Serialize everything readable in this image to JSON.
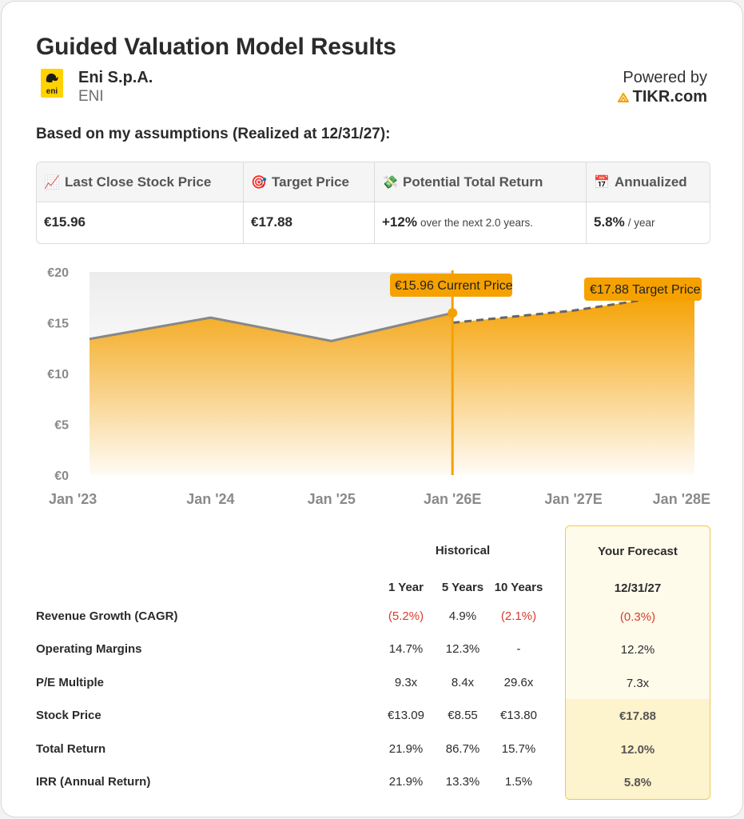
{
  "header": {
    "title": "Guided Valuation Model Results",
    "company": "Eni S.p.A.",
    "ticker": "ENI",
    "powered_by": "Powered by",
    "brand": "TIKR.com",
    "logo_text": "eni"
  },
  "assumptions_label": "Based on my assumptions (Realized at 12/31/27):",
  "summary": {
    "columns": [
      {
        "icon": "chart-increasing-icon",
        "glyph": "📈",
        "label": "Last Close Stock Price",
        "value": "€15.96",
        "suffix": ""
      },
      {
        "icon": "target-icon",
        "glyph": "🎯",
        "label": "Target Price",
        "value": "€17.88",
        "suffix": ""
      },
      {
        "icon": "money-flying-icon",
        "glyph": "💸",
        "label": "Potential Total Return",
        "value": "+12%",
        "suffix": "over the next 2.0 years."
      },
      {
        "icon": "calendar-icon",
        "glyph": "📅",
        "label": "Annualized",
        "value": "5.8%",
        "suffix": "/ year"
      }
    ]
  },
  "chart_data": {
    "type": "area",
    "title": "",
    "x_labels": [
      "Jan '23",
      "Jan '24",
      "Jan '25",
      "Jan '26E",
      "Jan '27E",
      "Jan '28E"
    ],
    "y_ticks": [
      "€0",
      "€5",
      "€10",
      "€15",
      "€20"
    ],
    "ylim": [
      0,
      20
    ],
    "historical": {
      "x": [
        0,
        1,
        2,
        3
      ],
      "y": [
        13.4,
        15.5,
        13.2,
        15.96
      ]
    },
    "forecast": {
      "x": [
        3,
        4,
        4.55,
        5
      ],
      "y": [
        15.0,
        16.2,
        17.2,
        17.88
      ]
    },
    "current_price_label": "€15.96 Current Price",
    "target_price_label": "€17.88 Target Price",
    "colors": {
      "accent": "#f5a000",
      "line": "#888888",
      "label_bg": "#f5a100"
    }
  },
  "table": {
    "historical_header": "Historical",
    "forecast_header": "Your Forecast",
    "sub_headers": [
      "1 Year",
      "5 Years",
      "10 Years"
    ],
    "forecast_date": "12/31/27",
    "rows": [
      {
        "label": "Revenue Growth (CAGR)",
        "values": [
          "(5.2%)",
          "4.9%",
          "(2.1%)"
        ],
        "forecast": "(0.3%)"
      },
      {
        "label": "Operating Margins",
        "values": [
          "14.7%",
          "12.3%",
          "-"
        ],
        "forecast": "12.2%"
      },
      {
        "label": "P/E Multiple",
        "values": [
          "9.3x",
          "8.4x",
          "29.6x"
        ],
        "forecast": "7.3x"
      },
      {
        "label": "Stock Price",
        "values": [
          "€13.09",
          "€8.55",
          "€13.80"
        ],
        "forecast": "€17.88"
      },
      {
        "label": "Total Return",
        "values": [
          "21.9%",
          "86.7%",
          "15.7%"
        ],
        "forecast": "12.0%"
      },
      {
        "label": "IRR (Annual Return)",
        "values": [
          "21.9%",
          "13.3%",
          "1.5%"
        ],
        "forecast": "5.8%"
      }
    ]
  }
}
